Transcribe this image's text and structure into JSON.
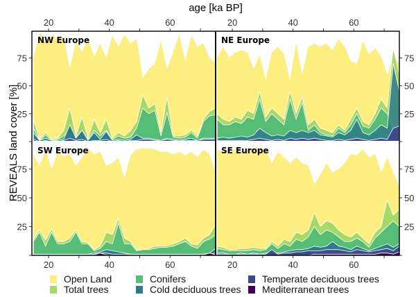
{
  "chart_data": {
    "type": "area",
    "title": "",
    "xlabel": "age [ka BP]",
    "ylabel": "REVEALS land cover [%]",
    "xlim": [
      14.5,
      75
    ],
    "ylim": [
      0,
      98
    ],
    "x_ticks": [
      20,
      40,
      60
    ],
    "x_minor_ticks": [
      30,
      50,
      70
    ],
    "y_ticks": [
      25,
      50,
      75
    ],
    "legend_position": "bottom",
    "legend": [
      "Open Land",
      "Total trees",
      "Conifers",
      "Cold deciduous trees",
      "Temperate deciduous trees",
      "Mediterranean trees"
    ],
    "colors": {
      "Open Land": "#fdee80",
      "Total trees": "#a6d96a",
      "Conifers": "#55bd76",
      "Cold deciduous trees": "#2e7b8c",
      "Temperate deciduous trees": "#3f4a8a",
      "Mediterranean trees": "#440154"
    },
    "x": [
      15,
      17,
      19,
      21,
      23,
      25,
      27,
      29,
      31,
      33,
      35,
      37,
      39,
      41,
      43,
      45,
      47,
      49,
      51,
      53,
      55,
      57,
      59,
      61,
      63,
      65,
      67,
      69,
      71,
      73,
      75
    ],
    "panels": [
      {
        "name": "NW Europe",
        "series": [
          {
            "name": "Open Land",
            "values": [
              75,
              97,
              90,
              95,
              92,
              93,
              66,
              90,
              80,
              92,
              76,
              88,
              75,
              95,
              85,
              96,
              88,
              92,
              57,
              65,
              70,
              90,
              65,
              80,
              96,
              72,
              95,
              85,
              88,
              75,
              70
            ]
          },
          {
            "name": "Total trees",
            "values": [
              20,
              2,
              8,
              2,
              3,
              10,
              30,
              5,
              22,
              3,
              20,
              8,
              20,
              3,
              8,
              5,
              10,
              18,
              42,
              30,
              34,
              8,
              40,
              5,
              5,
              6,
              10,
              5,
              20,
              27,
              30
            ]
          },
          {
            "name": "Conifers",
            "values": [
              12,
              1,
              6,
              1,
              2,
              5,
              12,
              4,
              10,
              2,
              10,
              5,
              10,
              2,
              5,
              3,
              4,
              12,
              30,
              25,
              28,
              5,
              26,
              4,
              3,
              4,
              8,
              3,
              18,
              23,
              24
            ]
          },
          {
            "name": "Cold deciduous trees",
            "values": [
              8,
              1,
              3,
              1,
              1,
              2,
              15,
              3,
              10,
              1,
              8,
              2,
              9,
              1,
              2,
              1,
              2,
              6,
              3,
              3,
              2,
              1,
              3,
              2,
              1,
              2,
              3,
              1,
              3,
              3,
              3
            ]
          },
          {
            "name": "Temperate deciduous trees",
            "values": [
              2,
              0,
              1,
              0,
              0,
              1,
              3,
              1,
              2,
              0,
              1,
              1,
              2,
              0,
              1,
              0,
              1,
              1,
              2,
              2,
              1,
              1,
              2,
              1,
              1,
              1,
              1,
              1,
              2,
              2,
              2
            ]
          },
          {
            "name": "Mediterranean trees",
            "values": [
              0,
              0,
              0,
              0,
              0,
              0,
              0,
              0,
              0,
              0,
              0,
              0,
              0,
              0,
              0,
              0,
              0,
              0,
              0,
              0,
              0,
              0,
              0,
              0,
              0,
              0,
              0,
              0,
              0,
              0,
              0
            ]
          }
        ]
      },
      {
        "name": "NE Europe",
        "series": [
          {
            "name": "Open Land",
            "values": [
              75,
              85,
              75,
              80,
              82,
              80,
              65,
              78,
              55,
              80,
              85,
              78,
              55,
              88,
              60,
              85,
              88,
              85,
              88,
              82,
              92,
              85,
              72,
              70,
              90,
              78,
              84,
              76,
              60,
              77,
              70
            ]
          },
          {
            "name": "Total trees",
            "values": [
              25,
              20,
              18,
              22,
              20,
              28,
              25,
              45,
              22,
              30,
              25,
              20,
              45,
              25,
              40,
              15,
              20,
              12,
              10,
              8,
              15,
              10,
              20,
              30,
              18,
              15,
              25,
              38,
              30,
              84,
              60
            ]
          },
          {
            "name": "Conifers",
            "values": [
              20,
              15,
              15,
              18,
              16,
              22,
              20,
              38,
              18,
              25,
              20,
              15,
              38,
              20,
              35,
              10,
              15,
              8,
              6,
              5,
              12,
              8,
              15,
              25,
              14,
              12,
              20,
              30,
              25,
              10,
              15
            ]
          },
          {
            "name": "Cold deciduous trees",
            "values": [
              3,
              4,
              3,
              4,
              5,
              4,
              6,
              12,
              8,
              5,
              6,
              5,
              10,
              8,
              10,
              8,
              10,
              6,
              5,
              4,
              8,
              6,
              10,
              20,
              8,
              6,
              10,
              15,
              12,
              70,
              45
            ]
          },
          {
            "name": "Temperate deciduous trees",
            "values": [
              1,
              1,
              1,
              1,
              1,
              1,
              2,
              3,
              2,
              1,
              2,
              1,
              3,
              2,
              3,
              2,
              3,
              2,
              1,
              1,
              2,
              1,
              2,
              3,
              2,
              1,
              2,
              3,
              2,
              12,
              14
            ]
          },
          {
            "name": "Mediterranean trees",
            "values": [
              0,
              0,
              0,
              0,
              0,
              0,
              0,
              0,
              0,
              0,
              0,
              0,
              0,
              0,
              0,
              0,
              0,
              0,
              0,
              0,
              0,
              0,
              0,
              0,
              0,
              0,
              0,
              0,
              0,
              0,
              0
            ]
          }
        ]
      },
      {
        "name": "SW Europe",
        "series": [
          {
            "name": "Open Land",
            "values": [
              88,
              78,
              92,
              75,
              90,
              86,
              88,
              78,
              85,
              93,
              88,
              90,
              78,
              80,
              85,
              67,
              87,
              92,
              93,
              93,
              92,
              90,
              90,
              88,
              90,
              87,
              90,
              85,
              92,
              88,
              72
            ]
          },
          {
            "name": "Total trees",
            "values": [
              14,
              22,
              13,
              23,
              12,
              12,
              15,
              22,
              12,
              11,
              5,
              8,
              20,
              18,
              32,
              15,
              12,
              5,
              5,
              6,
              8,
              8,
              8,
              10,
              12,
              15,
              10,
              9,
              15,
              18,
              27
            ]
          },
          {
            "name": "Conifers",
            "values": [
              12,
              20,
              8,
              20,
              10,
              10,
              12,
              20,
              10,
              10,
              4,
              6,
              12,
              10,
              28,
              10,
              10,
              4,
              5,
              5,
              6,
              7,
              7,
              8,
              10,
              12,
              8,
              6,
              12,
              14,
              18
            ]
          },
          {
            "name": "Cold deciduous trees",
            "values": [
              1,
              1,
              1,
              1,
              1,
              1,
              1,
              1,
              1,
              1,
              2,
              3,
              5,
              4,
              3,
              2,
              1,
              1,
              1,
              1,
              1,
              1,
              1,
              1,
              1,
              1,
              1,
              1,
              1,
              2,
              6
            ]
          },
          {
            "name": "Temperate deciduous trees",
            "values": [
              0.5,
              0.5,
              0.5,
              0.5,
              0.5,
              0.5,
              0.5,
              0.5,
              0.5,
              0.5,
              1,
              2,
              2,
              1,
              1,
              1,
              0.5,
              0.5,
              0.5,
              0.5,
              0.5,
              0.5,
              0.5,
              0.5,
              0.5,
              0.5,
              0.5,
              0.5,
              0.5,
              1,
              2
            ]
          },
          {
            "name": "Mediterranean trees",
            "values": [
              0,
              0,
              0,
              0,
              0,
              0,
              0,
              0,
              0,
              0,
              0.5,
              2,
              0.5,
              0,
              0,
              0,
              0,
              0,
              0,
              0,
              0,
              0,
              0,
              0,
              0,
              0,
              0,
              0,
              0.5,
              2,
              0.5
            ]
          }
        ]
      },
      {
        "name": "SE Europe",
        "series": [
          {
            "name": "Open Land",
            "values": [
              92,
              90,
              92,
              92,
              90,
              92,
              93,
              92,
              92,
              80,
              90,
              85,
              80,
              85,
              80,
              78,
              62,
              70,
              80,
              72,
              75,
              80,
              88,
              87,
              92,
              85,
              88,
              72,
              85,
              72,
              60
            ]
          },
          {
            "name": "Total trees",
            "values": [
              8,
              7,
              5,
              5,
              6,
              6,
              7,
              6,
              6,
              12,
              8,
              14,
              12,
              20,
              18,
              22,
              37,
              25,
              30,
              28,
              22,
              18,
              16,
              20,
              15,
              10,
              20,
              25,
              48,
              35,
              40
            ]
          },
          {
            "name": "Conifers",
            "values": [
              6,
              5,
              4,
              4,
              4,
              4,
              5,
              4,
              5,
              10,
              6,
              10,
              8,
              14,
              12,
              16,
              25,
              18,
              22,
              20,
              16,
              12,
              12,
              15,
              12,
              7,
              15,
              20,
              25,
              30,
              25
            ]
          },
          {
            "name": "Cold deciduous trees",
            "values": [
              2,
              2,
              1,
              1,
              2,
              1,
              2,
              1,
              2,
              3,
              2,
              3,
              4,
              5,
              5,
              6,
              8,
              7,
              8,
              12,
              8,
              7,
              5,
              8,
              6,
              4,
              6,
              8,
              10,
              7,
              10
            ]
          },
          {
            "name": "Temperate deciduous trees",
            "values": [
              1,
              1,
              1,
              1,
              1,
              1,
              1,
              1,
              1,
              5,
              1,
              2,
              2,
              3,
              3,
              4,
              4,
              4,
              5,
              5,
              5,
              4,
              3,
              5,
              4,
              3,
              4,
              5,
              6,
              4,
              8
            ]
          },
          {
            "name": "Mediterranean trees",
            "values": [
              0,
              0,
              0,
              0,
              0,
              0,
              0,
              0,
              0,
              0,
              0,
              0,
              0,
              0,
              0,
              0,
              1,
              1,
              1,
              1,
              1,
              1,
              1,
              1,
              1,
              1,
              1,
              2,
              2,
              1,
              3
            ]
          }
        ]
      }
    ]
  }
}
